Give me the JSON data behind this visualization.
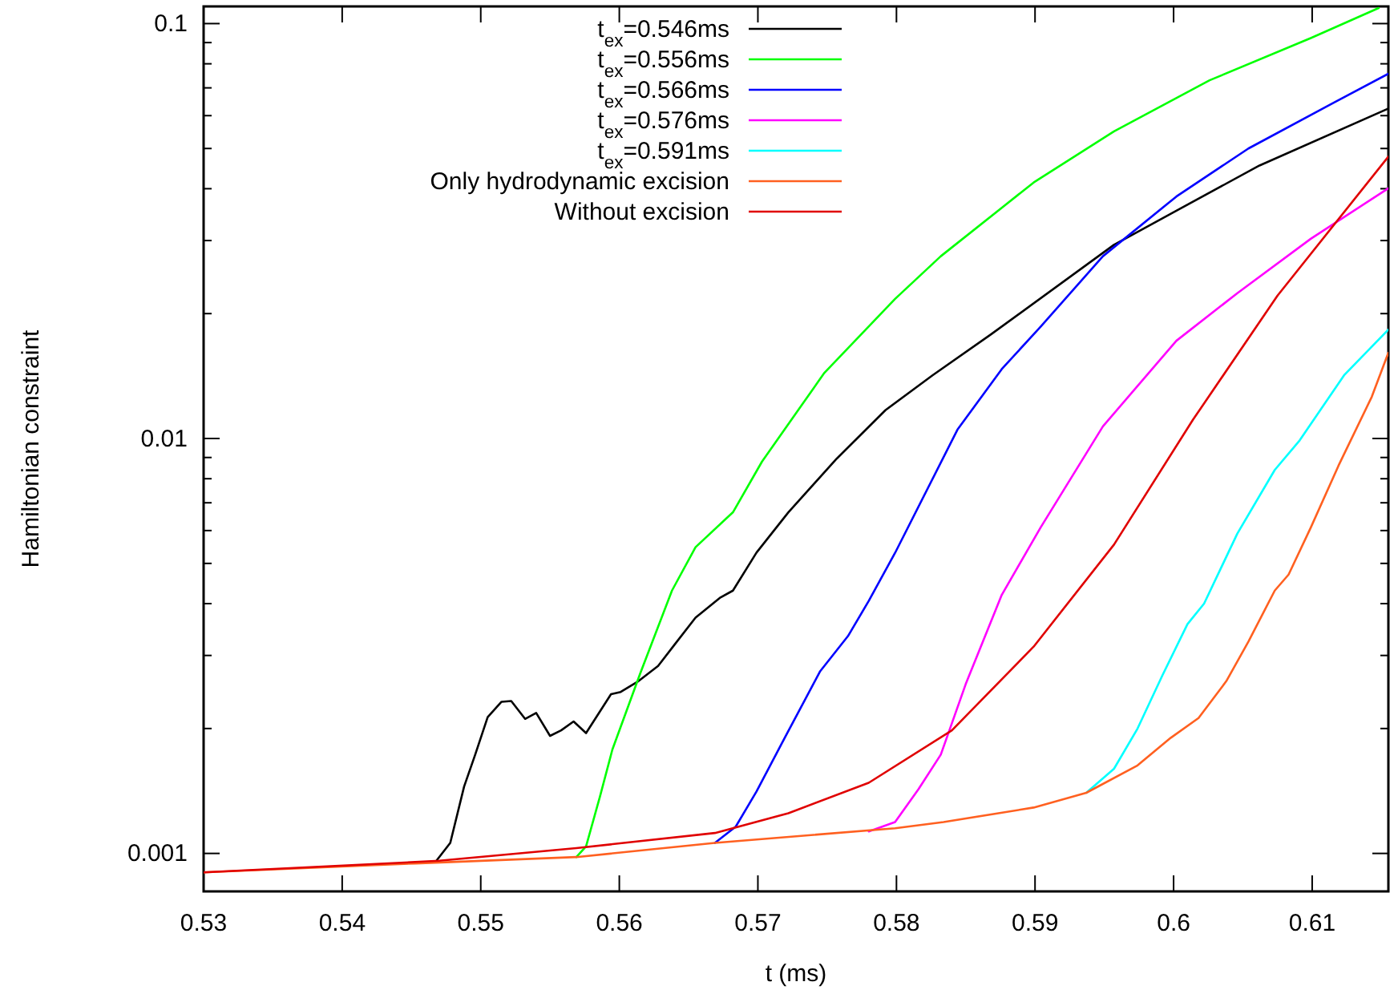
{
  "chart_data": {
    "type": "line",
    "xlabel": "t (ms)",
    "ylabel": "Hamiltonian constraint",
    "log": "y",
    "grid": false,
    "legend": "top",
    "marker": "none",
    "line_style": "solid",
    "xlim": [
      0.53,
      0.6155
    ],
    "xticks": [
      0.53,
      0.54,
      0.55,
      0.56,
      0.57,
      0.58,
      0.59,
      0.6,
      0.61
    ],
    "ylim": [
      0.00081,
      0.11
    ],
    "yticks": [
      0.001,
      {
        "value": 0.002,
        "label": null
      },
      {
        "value": 0.003,
        "label": null
      },
      {
        "value": 0.004,
        "label": null
      },
      {
        "value": 0.005,
        "label": null
      },
      {
        "value": 0.006,
        "label": null
      },
      {
        "value": 0.007,
        "label": null
      },
      {
        "value": 0.008,
        "label": null
      },
      {
        "value": 0.009,
        "label": null
      },
      0.01,
      {
        "value": 0.02,
        "label": null
      },
      {
        "value": 0.03,
        "label": null
      },
      {
        "value": 0.04,
        "label": null
      },
      {
        "value": 0.05,
        "label": null
      },
      {
        "value": 0.06,
        "label": null
      },
      {
        "value": 0.07,
        "label": null
      },
      {
        "value": 0.08,
        "label": null
      },
      {
        "value": 0.09,
        "label": null
      },
      0.1
    ],
    "series": [
      {
        "name": "t$_{ex}$=0.546ms",
        "color": "#000000",
        "x": [
          0.5468,
          0.5478,
          0.5488,
          0.5496,
          0.5505,
          0.5515,
          0.5522,
          0.5532,
          0.554,
          0.555,
          0.5558,
          0.5567,
          0.5576,
          0.5594,
          0.5601,
          0.5613,
          0.5628,
          0.564,
          0.5655,
          0.5673,
          0.5682,
          0.5699,
          0.5722,
          0.5757,
          0.5792,
          0.5826,
          0.5868,
          0.5957,
          0.6002,
          0.6062,
          0.6155
        ],
        "values": [
          0.00096,
          0.00106,
          0.00145,
          0.00173,
          0.00213,
          0.00232,
          0.00233,
          0.00211,
          0.00218,
          0.00192,
          0.00198,
          0.00208,
          0.00195,
          0.00242,
          0.00245,
          0.00259,
          0.00283,
          0.00319,
          0.0037,
          0.00414,
          0.0043,
          0.00531,
          0.00664,
          0.00895,
          0.0117,
          0.0142,
          0.0178,
          0.0293,
          0.0354,
          0.0455,
          0.0624
        ]
      },
      {
        "name": "t$_{ex}$=0.556ms",
        "color": "#00ff00",
        "x": [
          0.5569,
          0.5576,
          0.5586,
          0.5595,
          0.5615,
          0.5638,
          0.5655,
          0.5682,
          0.5703,
          0.5748,
          0.5799,
          0.5832,
          0.5899,
          0.5957,
          0.6026,
          0.6099,
          0.6148
        ],
        "values": [
          0.00098,
          0.00104,
          0.00137,
          0.00178,
          0.00271,
          0.0043,
          0.00547,
          0.00664,
          0.0088,
          0.0144,
          0.0217,
          0.0275,
          0.0414,
          0.055,
          0.073,
          0.0923,
          0.109
        ]
      },
      {
        "name": "t$_{ex}$=0.566ms",
        "color": "#0000ff",
        "x": [
          0.5669,
          0.5684,
          0.5699,
          0.5719,
          0.5745,
          0.5765,
          0.578,
          0.5799,
          0.5844,
          0.5876,
          0.5904,
          0.5949,
          0.6002,
          0.6054,
          0.6115,
          0.6155
        ],
        "values": [
          0.00106,
          0.00116,
          0.00141,
          0.00189,
          0.00275,
          0.00334,
          0.00406,
          0.0053,
          0.0105,
          0.0147,
          0.0186,
          0.0275,
          0.0383,
          0.05,
          0.0643,
          0.0757
        ]
      },
      {
        "name": "t$_{ex}$=0.576ms",
        "color": "#ff00ff",
        "x": [
          0.578,
          0.5799,
          0.5816,
          0.5832,
          0.585,
          0.5876,
          0.5904,
          0.5949,
          0.6002,
          0.6046,
          0.6099,
          0.6155
        ],
        "values": [
          0.00113,
          0.00119,
          0.00143,
          0.00173,
          0.00256,
          0.0042,
          0.0061,
          0.0107,
          0.0172,
          0.0224,
          0.0303,
          0.0401
        ]
      },
      {
        "name": "t$_{ex}$=0.591ms",
        "color": "#00ffff",
        "x": [
          0.5937,
          0.5957,
          0.5974,
          0.5992,
          0.601,
          0.6022,
          0.6046,
          0.6073,
          0.6091,
          0.6123,
          0.6155
        ],
        "values": [
          0.0014,
          0.0016,
          0.002,
          0.00269,
          0.00357,
          0.004,
          0.0059,
          0.0084,
          0.0099,
          0.0142,
          0.0183
        ]
      },
      {
        "name": "Only hydrodynamic excision",
        "color": "#ff6020",
        "x": [
          0.53,
          0.5453,
          0.5569,
          0.5669,
          0.5799,
          0.5834,
          0.5899,
          0.5937,
          0.5974,
          0.5998,
          0.6018,
          0.6038,
          0.6054,
          0.6073,
          0.6083,
          0.6099,
          0.6119,
          0.6143,
          0.6155
        ],
        "values": [
          0.0009,
          0.000946,
          0.00098,
          0.00106,
          0.00115,
          0.00119,
          0.00129,
          0.0014,
          0.00163,
          0.0019,
          0.00212,
          0.0026,
          0.00324,
          0.0043,
          0.0047,
          0.0061,
          0.0086,
          0.0126,
          0.0161
        ]
      },
      {
        "name": "Without excision",
        "color": "#e00000",
        "x": [
          0.53,
          0.547,
          0.5569,
          0.5669,
          0.5722,
          0.578,
          0.584,
          0.5899,
          0.5957,
          0.6014,
          0.6075,
          0.6155
        ],
        "values": [
          0.0009,
          0.00096,
          0.00103,
          0.00112,
          0.00125,
          0.00148,
          0.00198,
          0.00315,
          0.00555,
          0.0111,
          0.0221,
          0.0478
        ]
      }
    ]
  }
}
